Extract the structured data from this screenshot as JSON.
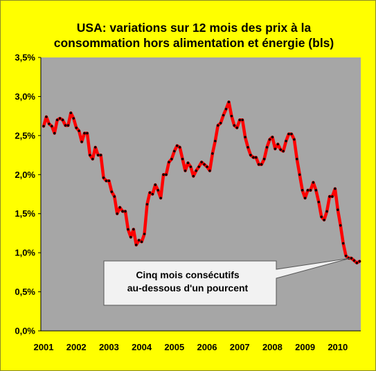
{
  "chart_data": {
    "type": "line",
    "title": "USA: variations sur 12 mois des prix à la consommation hors alimentation et énergie (bls)",
    "title_lines": [
      "USA: variations sur 12 mois des prix à la",
      "consommation hors alimentation et énergie (bls)"
    ],
    "xlabel": "",
    "ylabel": "",
    "x_tick_labels": [
      "2001",
      "2002",
      "2003",
      "2004",
      "2005",
      "2006",
      "2007",
      "2008",
      "2009",
      "2010"
    ],
    "y_tick_labels": [
      "0,0%",
      "0,5%",
      "1,0%",
      "1,5%",
      "2,0%",
      "2,5%",
      "3,0%",
      "3,5%"
    ],
    "ylim": [
      0,
      3.5
    ],
    "xlim": [
      "2001-01",
      "2010-09"
    ],
    "grid": false,
    "legend": "none",
    "colors": {
      "line": "#ff0000",
      "markers": "#000000",
      "plot_background": "#a6a6a6",
      "page_background": "#ffff00"
    },
    "annotation": {
      "lines": [
        "Cinq mois consécutifs",
        "au-dessous d'un pourcent"
      ],
      "points_to": "2010-07"
    },
    "series": [
      {
        "start": "2001-01",
        "frequency": "monthly",
        "values": [
          2.62,
          2.74,
          2.65,
          2.62,
          2.53,
          2.7,
          2.72,
          2.7,
          2.63,
          2.63,
          2.79,
          2.72,
          2.6,
          2.56,
          2.42,
          2.53,
          2.53,
          2.25,
          2.2,
          2.35,
          2.25,
          2.25,
          1.96,
          1.92,
          1.92,
          1.78,
          1.72,
          1.5,
          1.58,
          1.53,
          1.53,
          1.3,
          1.2,
          1.3,
          1.1,
          1.16,
          1.14,
          1.24,
          1.62,
          1.77,
          1.75,
          1.87,
          1.8,
          1.7,
          2.0,
          2.0,
          2.16,
          2.2,
          2.3,
          2.37,
          2.35,
          2.2,
          2.05,
          2.15,
          2.1,
          1.98,
          2.05,
          2.1,
          2.16,
          2.13,
          2.1,
          2.05,
          2.27,
          2.43,
          2.63,
          2.66,
          2.76,
          2.84,
          2.93,
          2.75,
          2.63,
          2.6,
          2.7,
          2.7,
          2.48,
          2.35,
          2.25,
          2.22,
          2.22,
          2.13,
          2.13,
          2.2,
          2.35,
          2.45,
          2.48,
          2.33,
          2.39,
          2.32,
          2.3,
          2.43,
          2.52,
          2.52,
          2.45,
          2.2,
          2.0,
          1.8,
          1.7,
          1.8,
          1.8,
          1.9,
          1.8,
          1.65,
          1.46,
          1.42,
          1.53,
          1.72,
          1.72,
          1.82,
          1.55,
          1.35,
          1.12,
          0.96,
          0.93,
          0.93,
          0.9,
          0.87,
          0.89
        ]
      }
    ]
  }
}
